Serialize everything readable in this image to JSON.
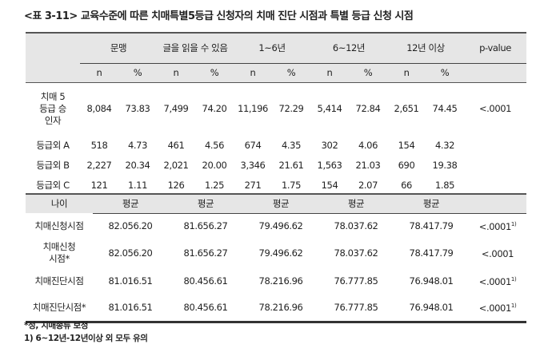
{
  "title": "<표 3-11> 교육수준에 따른 치매특별5등급 신청자의 치매 진단 시점과 특별 등급 신청 시점",
  "groups": [
    "문맹",
    "글을 읽을 수 있음",
    "1~6년",
    "6~12년",
    "12년 이상"
  ],
  "pvalue_header": "p-value",
  "sub": [
    "n",
    "%"
  ],
  "rows": [
    {
      "label": "치매 5등급 승인자",
      "values": [
        "8,084",
        "73.83",
        "7,499",
        "74.20",
        "11,196",
        "72.29",
        "5,414",
        "72.84",
        "2,651",
        "74.45"
      ],
      "p": "<.0001"
    },
    {
      "label": "등급외 A",
      "values": [
        "518",
        "4.73",
        "461",
        "4.56",
        "674",
        "4.35",
        "302",
        "4.06",
        "154",
        "4.32"
      ],
      "p": ""
    },
    {
      "label": "등급외 B",
      "values": [
        "2,227",
        "20.34",
        "2,021",
        "20.00",
        "3,346",
        "21.61",
        "1,563",
        "21.03",
        "690",
        "19.38"
      ],
      "p": ""
    },
    {
      "label": "등급외 C",
      "values": [
        "121",
        "1.11",
        "126",
        "1.25",
        "271",
        "1.75",
        "154",
        "2.07",
        "66",
        "1.85"
      ],
      "p": ""
    }
  ],
  "age": {
    "label": "나이",
    "mean": "평균",
    "rows": [
      {
        "label": "치매신청시점",
        "values": [
          "82.056.20",
          "81.656.27",
          "79.496.62",
          "78.037.62",
          "78.417.79"
        ],
        "p": "<.0001",
        "sup": "1)"
      },
      {
        "label": "치매신청 시점*",
        "values": [
          "82.056.20",
          "81.656.27",
          "79.496.62",
          "78.037.62",
          "78.417.79"
        ],
        "p": "<.0001",
        "sup": ""
      },
      {
        "label": "치매진단시점",
        "values": [
          "81.016.51",
          "80.456.61",
          "78.216.96",
          "76.777.85",
          "76.948.01"
        ],
        "p": "<.0001",
        "sup": "1)"
      },
      {
        "label": "치매진단시점*",
        "values": [
          "81.016.51",
          "80.456.61",
          "78.216.96",
          "76.777.85",
          "76.948.01"
        ],
        "p": "<.0001",
        "sup": "1)"
      }
    ]
  },
  "footnotes": [
    "*성, 치매종류 보정",
    "1) 6~12년-12년이상 외 모두 유의"
  ]
}
